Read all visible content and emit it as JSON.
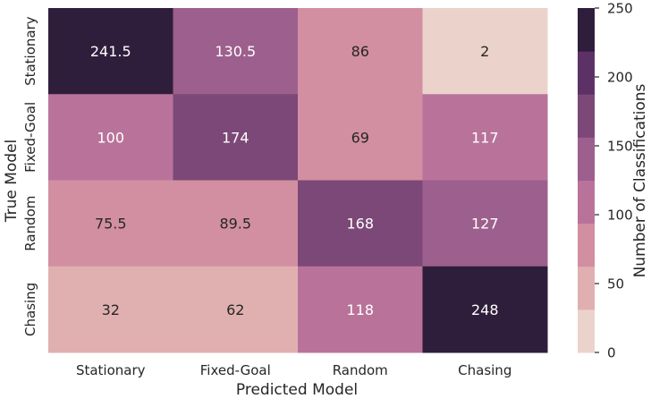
{
  "chart_data": {
    "type": "heatmap",
    "xlabel": "Predicted Model",
    "ylabel": "True Model",
    "x_categories": [
      "Stationary",
      "Fixed-Goal",
      "Random",
      "Chasing"
    ],
    "y_categories": [
      "Stationary",
      "Fixed-Goal",
      "Random",
      "Chasing"
    ],
    "values": [
      [
        241.5,
        130.5,
        86,
        2
      ],
      [
        100,
        174,
        69,
        117
      ],
      [
        75.5,
        89.5,
        168,
        127
      ],
      [
        32,
        62,
        118,
        248
      ]
    ],
    "cell_labels": [
      [
        "241.5",
        "130.5",
        "86",
        "2"
      ],
      [
        "100",
        "174",
        "69",
        "117"
      ],
      [
        "75.5",
        "89.5",
        "168",
        "127"
      ],
      [
        "32",
        "62",
        "118",
        "248"
      ]
    ],
    "colorbar": {
      "label": "Number of Classifications",
      "range": [
        0,
        250
      ],
      "ticks": [
        0,
        50,
        100,
        150,
        200,
        250
      ],
      "tick_labels": [
        "0",
        "50",
        "100",
        "150",
        "200",
        "250"
      ],
      "bins": 8,
      "colors": [
        "#ebd3cb",
        "#e0b0b0",
        "#d28fa1",
        "#b9739a",
        "#9d5f8d",
        "#7c4878",
        "#5c3266",
        "#2e1e3b"
      ]
    },
    "annotation_colors": {
      "light": "#ffffff",
      "dark": "#262626"
    }
  }
}
